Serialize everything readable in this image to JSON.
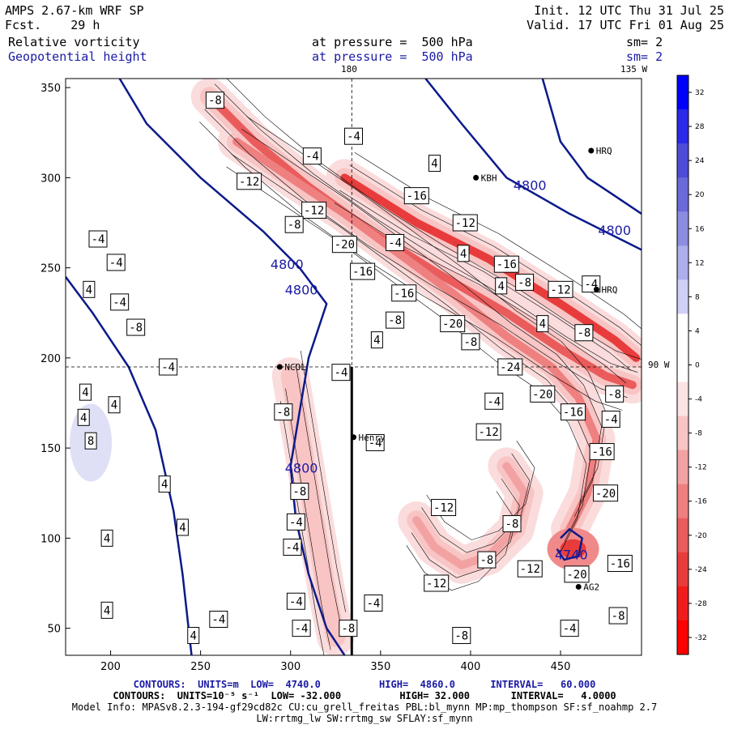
{
  "header": {
    "model": "AMPS 2.67-km WRF SP",
    "fcst": "Fcst.    29 h",
    "init": "Init. 12 UTC Thu 31 Jul 25",
    "valid": "Valid. 17 UTC Fri 01 Aug 25",
    "field1": "Relative vorticity",
    "field2": "Geopotential height",
    "pressure1": "at pressure =  500 hPa",
    "pressure2": "at pressure =  500 hPa",
    "sm1": "sm= 2",
    "sm2": "sm= 2"
  },
  "map_labels": {
    "lon180": "180",
    "lon135": "135 W",
    "lon90": "90 W",
    "stations": [
      "NCOL",
      "Henry",
      "KBH",
      "HRQ",
      "HRQ",
      "AG2"
    ]
  },
  "footer": {
    "line1": "CONTOURS:  UNITS=m  LOW=  4740.0          HIGH=  4860.0      INTERVAL=   60.000",
    "line2": "CONTOURS:  UNITS=10⁻⁵ s⁻¹  LOW= -32.000          HIGH= 32.000       INTERVAL=   4.0000",
    "line3": "Model Info: MPASv8.2.3-194-gf29cd82c CU:cu_grell_freitas PBL:bl_mynn MP:mp_thompson SF:sf_noahmp 2.7",
    "line4": "LW:rrtmg_lw SW:rrtmg_sw SFLAY:sf_mynn"
  },
  "chart_data": {
    "type": "heatmap",
    "xlim": [
      175,
      495
    ],
    "ylim": [
      35,
      355
    ],
    "xticks": [
      200,
      250,
      300,
      350,
      400,
      450
    ],
    "yticks": [
      50,
      100,
      150,
      200,
      250,
      300,
      350
    ],
    "colorbar": {
      "unit": "10⁻⁵ s⁻¹",
      "levels": [
        32,
        28,
        24,
        20,
        16,
        12,
        8,
        4,
        0,
        -4,
        -8,
        -12,
        -16,
        -20,
        -24,
        -28,
        -32
      ],
      "colors": [
        "#0000ff",
        "#2a2ae8",
        "#4c4cd8",
        "#6a6ad8",
        "#8c8ce0",
        "#aeaeec",
        "#d0d0f6",
        "#ffffff",
        "#ffffff",
        "#fde4e4",
        "#f8c4c4",
        "#f2a2a2",
        "#ee8080",
        "#ea5c5c",
        "#e83c3c",
        "#f01c1c",
        "#ff0000"
      ]
    },
    "height_contours": [
      {
        "label": "4800",
        "points": [
          [
            175,
            245
          ],
          [
            190,
            225
          ],
          [
            210,
            195
          ],
          [
            225,
            160
          ],
          [
            235,
            115
          ],
          [
            240,
            80
          ],
          [
            245,
            35
          ]
        ]
      },
      {
        "label": "4800",
        "points": [
          [
            205,
            355
          ],
          [
            220,
            330
          ],
          [
            250,
            300
          ],
          [
            285,
            270
          ],
          [
            305,
            250
          ],
          [
            320,
            230
          ],
          [
            310,
            200
          ],
          [
            305,
            170
          ],
          [
            300,
            140
          ],
          [
            303,
            110
          ],
          [
            310,
            80
          ],
          [
            320,
            50
          ],
          [
            330,
            35
          ]
        ]
      },
      {
        "label": "4800",
        "points": [
          [
            375,
            355
          ],
          [
            395,
            330
          ],
          [
            420,
            300
          ],
          [
            455,
            280
          ],
          [
            485,
            265
          ],
          [
            495,
            260
          ]
        ]
      },
      {
        "label": "4800",
        "points": [
          [
            440,
            355
          ],
          [
            450,
            320
          ],
          [
            465,
            300
          ],
          [
            480,
            290
          ],
          [
            495,
            280
          ]
        ]
      },
      {
        "label": "4740",
        "points": [
          [
            450,
            100
          ],
          [
            455,
            105
          ],
          [
            462,
            100
          ],
          [
            460,
            90
          ],
          [
            452,
            88
          ],
          [
            448,
            94
          ]
        ]
      }
    ],
    "vorticity_bands": [
      {
        "level": -20,
        "points": [
          [
            255,
            345
          ],
          [
            280,
            320
          ],
          [
            310,
            295
          ],
          [
            345,
            270
          ],
          [
            380,
            248
          ],
          [
            420,
            225
          ],
          [
            450,
            205
          ],
          [
            475,
            190
          ],
          [
            490,
            185
          ]
        ]
      },
      {
        "level": -24,
        "points": [
          [
            330,
            300
          ],
          [
            370,
            275
          ],
          [
            410,
            255
          ],
          [
            450,
            230
          ],
          [
            480,
            210
          ],
          [
            492,
            200
          ]
        ]
      },
      {
        "level": -16,
        "points": [
          [
            270,
            320
          ],
          [
            300,
            300
          ],
          [
            330,
            280
          ],
          [
            360,
            258
          ],
          [
            390,
            236
          ],
          [
            420,
            212
          ],
          [
            445,
            195
          ],
          [
            460,
            178
          ],
          [
            470,
            155
          ],
          [
            465,
            125
          ],
          [
            455,
            105
          ]
        ]
      },
      {
        "level": -12,
        "points": [
          [
            420,
            140
          ],
          [
            430,
            125
          ],
          [
            425,
            105
          ],
          [
            410,
            90
          ],
          [
            395,
            85
          ],
          [
            380,
            95
          ],
          [
            370,
            110
          ]
        ]
      },
      {
        "level": -8,
        "points": [
          [
            300,
            190
          ],
          [
            305,
            160
          ],
          [
            310,
            130
          ],
          [
            315,
            100
          ],
          [
            320,
            70
          ],
          [
            325,
            45
          ]
        ]
      }
    ],
    "contour_labels": [
      {
        "text": "-8",
        "x": 258,
        "y": 343
      },
      {
        "text": "-4",
        "x": 335,
        "y": 323
      },
      {
        "text": "-4",
        "x": 312,
        "y": 312
      },
      {
        "text": "4",
        "x": 380,
        "y": 308
      },
      {
        "text": "-12",
        "x": 277,
        "y": 298
      },
      {
        "text": "-12",
        "x": 313,
        "y": 282
      },
      {
        "text": "-8",
        "x": 302,
        "y": 274
      },
      {
        "text": "-16",
        "x": 370,
        "y": 290
      },
      {
        "text": "-12",
        "x": 397,
        "y": 275
      },
      {
        "text": "-20",
        "x": 330,
        "y": 263
      },
      {
        "text": "-4",
        "x": 358,
        "y": 264
      },
      {
        "text": "4",
        "x": 396,
        "y": 258
      },
      {
        "text": "-16",
        "x": 420,
        "y": 252
      },
      {
        "text": "-8",
        "x": 430,
        "y": 242
      },
      {
        "text": "4",
        "x": 417,
        "y": 240
      },
      {
        "text": "-16",
        "x": 340,
        "y": 248
      },
      {
        "text": "-16",
        "x": 363,
        "y": 236
      },
      {
        "text": "-12",
        "x": 450,
        "y": 238
      },
      {
        "text": "-8",
        "x": 358,
        "y": 221
      },
      {
        "text": "-20",
        "x": 390,
        "y": 219
      },
      {
        "text": "4",
        "x": 440,
        "y": 219
      },
      {
        "text": "4",
        "x": 348,
        "y": 210
      },
      {
        "text": "-8",
        "x": 400,
        "y": 209
      },
      {
        "text": "-8",
        "x": 463,
        "y": 214
      },
      {
        "text": "-4",
        "x": 193,
        "y": 266
      },
      {
        "text": "-4",
        "x": 203,
        "y": 253
      },
      {
        "text": "4",
        "x": 188,
        "y": 238
      },
      {
        "text": "-4",
        "x": 205,
        "y": 231
      },
      {
        "text": "-8",
        "x": 214,
        "y": 217
      },
      {
        "text": "-4",
        "x": 232,
        "y": 195
      },
      {
        "text": "-4",
        "x": 328,
        "y": 192
      },
      {
        "text": "-24",
        "x": 422,
        "y": 195
      },
      {
        "text": "-20",
        "x": 440,
        "y": 180
      },
      {
        "text": "-8",
        "x": 480,
        "y": 180
      },
      {
        "text": "4",
        "x": 186,
        "y": 181
      },
      {
        "text": "4",
        "x": 202,
        "y": 174
      },
      {
        "text": "4",
        "x": 185,
        "y": 167
      },
      {
        "text": "-4",
        "x": 413,
        "y": 176
      },
      {
        "text": "-4",
        "x": 478,
        "y": 166
      },
      {
        "text": "-16",
        "x": 457,
        "y": 170
      },
      {
        "text": "-8",
        "x": 296,
        "y": 170
      },
      {
        "text": "-12",
        "x": 410,
        "y": 159
      },
      {
        "text": "-4",
        "x": 347,
        "y": 153
      },
      {
        "text": "-16",
        "x": 473,
        "y": 148
      },
      {
        "text": "8",
        "x": 189,
        "y": 154
      },
      {
        "text": "-8",
        "x": 305,
        "y": 126
      },
      {
        "text": "-4",
        "x": 303,
        "y": 109
      },
      {
        "text": "-8",
        "x": 423,
        "y": 108
      },
      {
        "text": "-12",
        "x": 385,
        "y": 117
      },
      {
        "text": "-20",
        "x": 475,
        "y": 125
      },
      {
        "text": "4",
        "x": 230,
        "y": 130
      },
      {
        "text": "4",
        "x": 240,
        "y": 106
      },
      {
        "text": "4",
        "x": 198,
        "y": 100
      },
      {
        "text": "-4",
        "x": 301,
        "y": 95
      },
      {
        "text": "-8",
        "x": 409,
        "y": 88
      },
      {
        "text": "-12",
        "x": 433,
        "y": 83
      },
      {
        "text": "-20",
        "x": 459,
        "y": 80
      },
      {
        "text": "-16",
        "x": 483,
        "y": 86
      },
      {
        "text": "-12",
        "x": 381,
        "y": 75
      },
      {
        "text": "4",
        "x": 198,
        "y": 60
      },
      {
        "text": "-4",
        "x": 303,
        "y": 65
      },
      {
        "text": "-4",
        "x": 346,
        "y": 64
      },
      {
        "text": "-4",
        "x": 260,
        "y": 55
      },
      {
        "text": "-4",
        "x": 306,
        "y": 50
      },
      {
        "text": "-8",
        "x": 332,
        "y": 50
      },
      {
        "text": "-8",
        "x": 395,
        "y": 46
      },
      {
        "text": "-4",
        "x": 455,
        "y": 50
      },
      {
        "text": "-8",
        "x": 482,
        "y": 57
      },
      {
        "text": "4",
        "x": 246,
        "y": 46
      },
      {
        "text": "-4",
        "x": 467,
        "y": 241
      }
    ],
    "height_labels": [
      {
        "text": "4800",
        "x": 298,
        "y": 252
      },
      {
        "text": "4800",
        "x": 306,
        "y": 238
      },
      {
        "text": "4800",
        "x": 306,
        "y": 139
      },
      {
        "text": "4800",
        "x": 433,
        "y": 296
      },
      {
        "text": "4800",
        "x": 480,
        "y": 271
      },
      {
        "text": "4740",
        "x": 456,
        "y": 91
      }
    ],
    "stations": [
      {
        "name": "NCOL",
        "x": 294,
        "y": 195
      },
      {
        "name": "Henry",
        "x": 335,
        "y": 156
      },
      {
        "name": "KBH",
        "x": 403,
        "y": 300
      },
      {
        "name": "HRQ",
        "x": 467,
        "y": 315
      },
      {
        "name": "HRQ",
        "x": 470,
        "y": 238
      },
      {
        "name": "AG2",
        "x": 460,
        "y": 73
      }
    ],
    "cross_section": [
      [
        334,
        195
      ],
      [
        334,
        35
      ]
    ]
  }
}
